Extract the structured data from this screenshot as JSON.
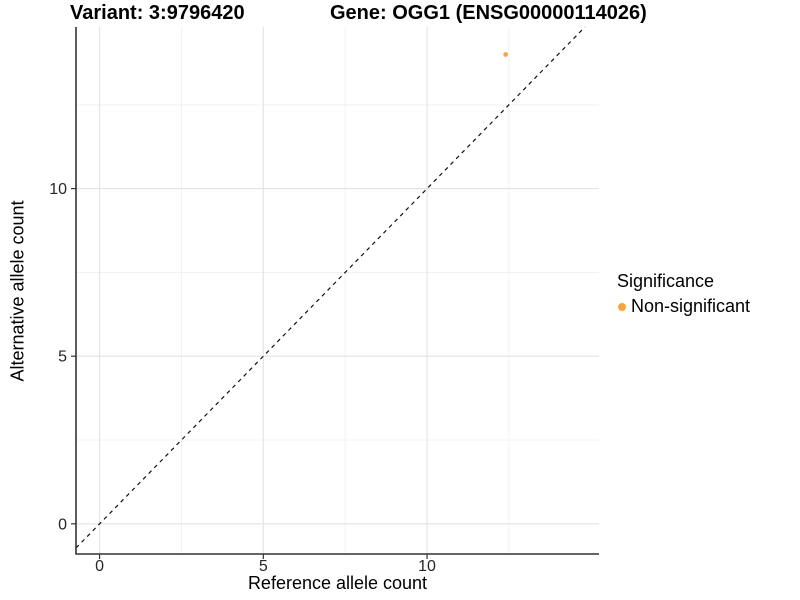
{
  "chart_data": {
    "type": "scatter",
    "title_left": "Variant: 3:9796420",
    "title_right": "Gene: OGG1 (ENSG00000114026)",
    "xlabel": "Reference allele count",
    "ylabel": "Alternative allele count",
    "x_ticks": [
      0,
      5,
      10
    ],
    "y_ticks": [
      0,
      5,
      10
    ],
    "x_minor": [
      2.5,
      7.5,
      12.5
    ],
    "y_minor": [
      2.5,
      7.5,
      12.5
    ],
    "xlim": [
      -0.72,
      15.25
    ],
    "ylim": [
      -0.9,
      14.82
    ],
    "grid": true,
    "legend_position": "right",
    "identity_line": {
      "style": "dashed",
      "slope": 1,
      "intercept": 0,
      "color": "#111111"
    },
    "series": [
      {
        "name": "Non-significant",
        "color": "#F9A43C",
        "points": [
          {
            "x": 12.4,
            "y": 14.0
          }
        ]
      }
    ],
    "legend": {
      "title": "Significance",
      "items": [
        {
          "label": "Non-significant",
          "color": "#F9A43C"
        }
      ]
    }
  },
  "colors": {
    "background": "#FFFFFF",
    "axis_line": "#333333",
    "tick_mark": "#333333",
    "tick_text": "#262626",
    "grid_major": "#E3E3E3",
    "grid_minor": "#F0F0F0",
    "title_text": "#000000"
  }
}
